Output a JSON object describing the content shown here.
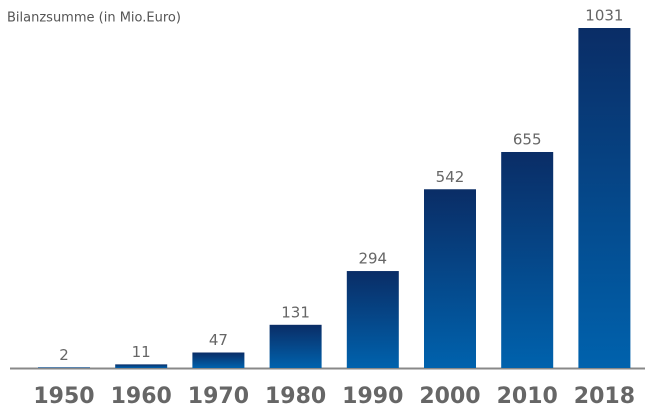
{
  "chart_data": {
    "type": "bar",
    "title": "Bilanzsumme (in Mio.Euro)",
    "categories": [
      "1950",
      "1960",
      "1970",
      "1980",
      "1990",
      "2000",
      "2010",
      "2018"
    ],
    "values": [
      2,
      11,
      47,
      131,
      294,
      542,
      655,
      1031
    ],
    "color": "#0a2d66"
  }
}
